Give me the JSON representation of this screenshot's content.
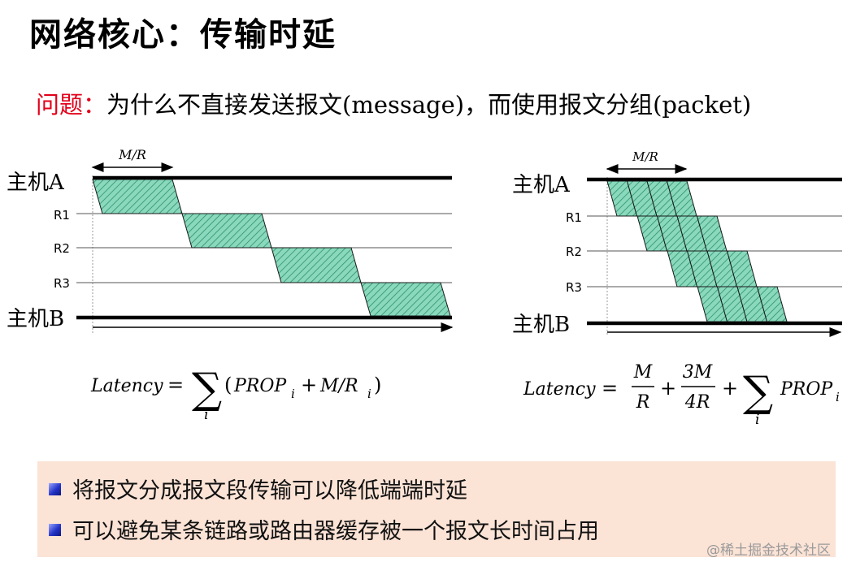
{
  "title": "网络核心：传输时延",
  "question": {
    "label": "问题：",
    "text": "为什么不直接发送报文(message)，而使用报文分组(packet)"
  },
  "diagram_left": {
    "span_label": "M/R",
    "host_a": "主机A",
    "host_b": "主机B",
    "routers": [
      "R1",
      "R2",
      "R3"
    ],
    "formula": {
      "lhs": "Latency",
      "eq": "=",
      "sum_sub": "i",
      "body_open": "(",
      "term1": "PROP",
      "term1_sub": "i",
      "plus": "+",
      "term2": "M/R",
      "term2_sub": "i",
      "body_close": ")"
    }
  },
  "diagram_right": {
    "span_label": "M/R",
    "host_a": "主机A",
    "host_b": "主机B",
    "routers": [
      "R1",
      "R2",
      "R3"
    ],
    "formula": {
      "lhs": "Latency",
      "eq": "=",
      "frac1_num": "M",
      "frac1_den": "R",
      "plus1": "+",
      "frac2_num": "3M",
      "frac2_den": "4R",
      "plus2": "+",
      "sum_sub": "i",
      "term": "PROP",
      "term_sub": "i"
    }
  },
  "bullets": [
    "将报文分成报文段传输可以降低端端时延",
    "可以避免某条链路或路由器缓存被一个报文长时间占用"
  ],
  "watermark": "@稀土掘金技术社区",
  "colors": {
    "title": "#000000",
    "question_label": "#e2001a",
    "packet_fill": "#7fd6b8",
    "packet_hatch": "#2d8f6d",
    "bullet_box": "#fbe3d6",
    "bullet_square": "#2434c8"
  }
}
